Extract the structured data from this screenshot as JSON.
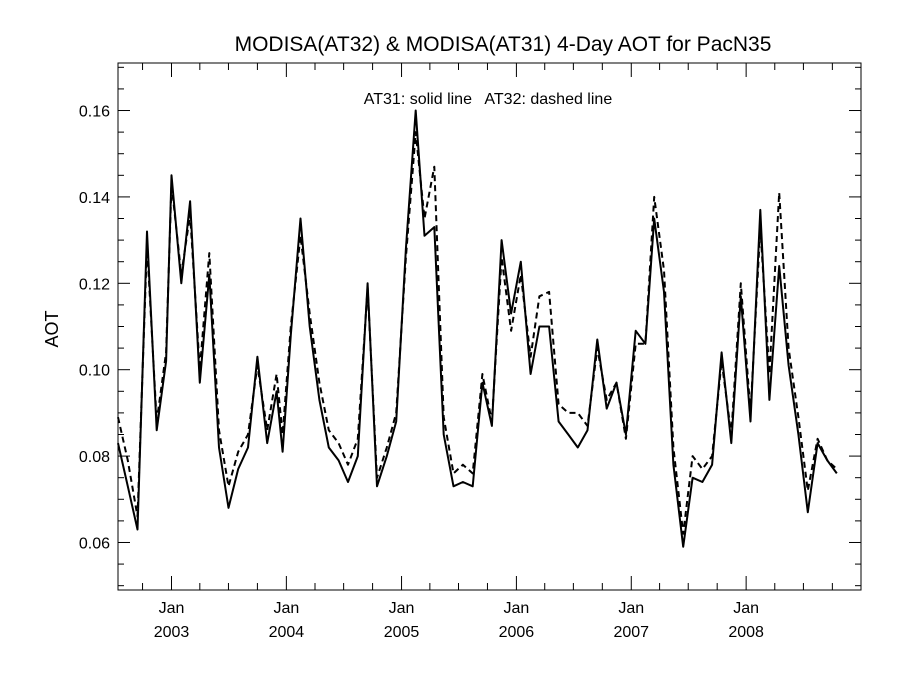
{
  "chart_data": {
    "type": "line",
    "title": "MODISA(AT32) & MODISA(AT31) 4-Day AOT for PacN35",
    "annotation": "AT31: solid line   AT32: dashed line",
    "xlabel": "",
    "ylabel": "AOT",
    "ylim": [
      0.049,
      0.171
    ],
    "xlim": [
      "2002-07-15",
      "2008-12-31"
    ],
    "yticks": [
      "0.06",
      "0.08",
      "0.10",
      "0.12",
      "0.14",
      "0.16"
    ],
    "yticks_values": [
      0.06,
      0.08,
      0.1,
      0.12,
      0.14,
      0.16
    ],
    "xticks": [
      {
        "month": "Jan",
        "year": "2003",
        "date": "2003-01-01"
      },
      {
        "month": "Jan",
        "year": "2004",
        "date": "2004-01-01"
      },
      {
        "month": "Jan",
        "year": "2005",
        "date": "2005-01-01"
      },
      {
        "month": "Jan",
        "year": "2006",
        "date": "2006-01-01"
      },
      {
        "month": "Jan",
        "year": "2007",
        "date": "2007-01-01"
      },
      {
        "month": "Jan",
        "year": "2008",
        "date": "2008-01-01"
      }
    ],
    "grid": false,
    "series": [
      {
        "name": "AT31",
        "style": "solid",
        "color": "#000000",
        "points": [
          [
            "2002-07-15",
            0.083
          ],
          [
            "2002-08-15",
            0.073
          ],
          [
            "2002-09-15",
            0.063
          ],
          [
            "2002-10-15",
            0.132
          ],
          [
            "2002-11-15",
            0.086
          ],
          [
            "2002-12-15",
            0.102
          ],
          [
            "2003-01-01",
            0.145
          ],
          [
            "2003-02-01",
            0.12
          ],
          [
            "2003-03-01",
            0.139
          ],
          [
            "2003-04-01",
            0.097
          ],
          [
            "2003-05-01",
            0.122
          ],
          [
            "2003-06-01",
            0.082
          ],
          [
            "2003-07-01",
            0.068
          ],
          [
            "2003-08-01",
            0.077
          ],
          [
            "2003-09-01",
            0.082
          ],
          [
            "2003-10-01",
            0.103
          ],
          [
            "2003-11-01",
            0.083
          ],
          [
            "2003-12-01",
            0.095
          ],
          [
            "2003-12-20",
            0.081
          ],
          [
            "2004-01-15",
            0.108
          ],
          [
            "2004-02-15",
            0.135
          ],
          [
            "2004-03-15",
            0.11
          ],
          [
            "2004-04-15",
            0.093
          ],
          [
            "2004-05-15",
            0.082
          ],
          [
            "2004-06-15",
            0.079
          ],
          [
            "2004-07-15",
            0.074
          ],
          [
            "2004-08-15",
            0.08
          ],
          [
            "2004-09-15",
            0.12
          ],
          [
            "2004-10-15",
            0.073
          ],
          [
            "2004-11-15",
            0.08
          ],
          [
            "2004-12-15",
            0.088
          ],
          [
            "2005-01-15",
            0.128
          ],
          [
            "2005-02-15",
            0.16
          ],
          [
            "2005-03-15",
            0.131
          ],
          [
            "2005-04-15",
            0.133
          ],
          [
            "2005-05-15",
            0.085
          ],
          [
            "2005-06-15",
            0.073
          ],
          [
            "2005-07-15",
            0.074
          ],
          [
            "2005-08-15",
            0.073
          ],
          [
            "2005-09-15",
            0.097
          ],
          [
            "2005-10-15",
            0.087
          ],
          [
            "2005-11-15",
            0.13
          ],
          [
            "2005-12-15",
            0.113
          ],
          [
            "2006-01-15",
            0.125
          ],
          [
            "2006-02-15",
            0.099
          ],
          [
            "2006-03-15",
            0.11
          ],
          [
            "2006-04-15",
            0.11
          ],
          [
            "2006-05-15",
            0.088
          ],
          [
            "2006-06-15",
            0.085
          ],
          [
            "2006-07-15",
            0.082
          ],
          [
            "2006-08-15",
            0.086
          ],
          [
            "2006-09-15",
            0.107
          ],
          [
            "2006-10-15",
            0.091
          ],
          [
            "2006-11-15",
            0.097
          ],
          [
            "2006-12-15",
            0.085
          ],
          [
            "2007-01-15",
            0.109
          ],
          [
            "2007-02-15",
            0.106
          ],
          [
            "2007-03-15",
            0.135
          ],
          [
            "2007-04-15",
            0.118
          ],
          [
            "2007-05-15",
            0.078
          ],
          [
            "2007-06-15",
            0.059
          ],
          [
            "2007-07-15",
            0.075
          ],
          [
            "2007-08-15",
            0.074
          ],
          [
            "2007-09-15",
            0.078
          ],
          [
            "2007-10-15",
            0.104
          ],
          [
            "2007-11-15",
            0.083
          ],
          [
            "2007-12-15",
            0.117
          ],
          [
            "2008-01-15",
            0.088
          ],
          [
            "2008-02-15",
            0.137
          ],
          [
            "2008-03-15",
            0.093
          ],
          [
            "2008-04-15",
            0.124
          ],
          [
            "2008-05-15",
            0.101
          ],
          [
            "2008-06-15",
            0.085
          ],
          [
            "2008-07-15",
            0.067
          ],
          [
            "2008-08-15",
            0.083
          ],
          [
            "2008-09-15",
            0.079
          ],
          [
            "2008-10-15",
            0.076
          ]
        ]
      },
      {
        "name": "AT32",
        "style": "dashed",
        "color": "#000000",
        "points": [
          [
            "2002-07-15",
            0.089
          ],
          [
            "2002-08-15",
            0.079
          ],
          [
            "2002-09-15",
            0.066
          ],
          [
            "2002-10-15",
            0.129
          ],
          [
            "2002-11-15",
            0.088
          ],
          [
            "2002-12-15",
            0.104
          ],
          [
            "2003-01-01",
            0.143
          ],
          [
            "2003-02-01",
            0.122
          ],
          [
            "2003-03-01",
            0.136
          ],
          [
            "2003-04-01",
            0.1
          ],
          [
            "2003-05-01",
            0.127
          ],
          [
            "2003-06-01",
            0.086
          ],
          [
            "2003-07-01",
            0.073
          ],
          [
            "2003-08-01",
            0.081
          ],
          [
            "2003-09-01",
            0.085
          ],
          [
            "2003-10-01",
            0.101
          ],
          [
            "2003-11-01",
            0.086
          ],
          [
            "2003-12-01",
            0.099
          ],
          [
            "2003-12-20",
            0.085
          ],
          [
            "2004-01-15",
            0.11
          ],
          [
            "2004-02-15",
            0.131
          ],
          [
            "2004-03-15",
            0.113
          ],
          [
            "2004-04-15",
            0.097
          ],
          [
            "2004-05-15",
            0.086
          ],
          [
            "2004-06-15",
            0.083
          ],
          [
            "2004-07-15",
            0.078
          ],
          [
            "2004-08-15",
            0.084
          ],
          [
            "2004-09-15",
            0.119
          ],
          [
            "2004-10-15",
            0.075
          ],
          [
            "2004-11-15",
            0.082
          ],
          [
            "2004-12-15",
            0.09
          ],
          [
            "2005-01-15",
            0.126
          ],
          [
            "2005-02-15",
            0.155
          ],
          [
            "2005-03-15",
            0.135
          ],
          [
            "2005-04-15",
            0.147
          ],
          [
            "2005-05-15",
            0.089
          ],
          [
            "2005-06-15",
            0.076
          ],
          [
            "2005-07-15",
            0.078
          ],
          [
            "2005-08-15",
            0.076
          ],
          [
            "2005-09-15",
            0.099
          ],
          [
            "2005-10-15",
            0.088
          ],
          [
            "2005-11-15",
            0.126
          ],
          [
            "2005-12-15",
            0.109
          ],
          [
            "2006-01-15",
            0.122
          ],
          [
            "2006-02-15",
            0.103
          ],
          [
            "2006-03-15",
            0.117
          ],
          [
            "2006-04-15",
            0.118
          ],
          [
            "2006-05-15",
            0.092
          ],
          [
            "2006-06-15",
            0.09
          ],
          [
            "2006-07-15",
            0.09
          ],
          [
            "2006-08-15",
            0.087
          ],
          [
            "2006-09-15",
            0.105
          ],
          [
            "2006-10-15",
            0.093
          ],
          [
            "2006-11-15",
            0.097
          ],
          [
            "2006-12-15",
            0.084
          ],
          [
            "2007-01-15",
            0.106
          ],
          [
            "2007-02-15",
            0.106
          ],
          [
            "2007-03-15",
            0.14
          ],
          [
            "2007-04-15",
            0.123
          ],
          [
            "2007-05-15",
            0.082
          ],
          [
            "2007-06-15",
            0.062
          ],
          [
            "2007-07-15",
            0.08
          ],
          [
            "2007-08-15",
            0.077
          ],
          [
            "2007-09-15",
            0.08
          ],
          [
            "2007-10-15",
            0.102
          ],
          [
            "2007-11-15",
            0.085
          ],
          [
            "2007-12-15",
            0.12
          ],
          [
            "2008-01-15",
            0.09
          ],
          [
            "2008-02-15",
            0.133
          ],
          [
            "2008-03-15",
            0.099
          ],
          [
            "2008-04-15",
            0.141
          ],
          [
            "2008-05-15",
            0.105
          ],
          [
            "2008-06-15",
            0.089
          ],
          [
            "2008-07-15",
            0.072
          ],
          [
            "2008-08-15",
            0.084
          ],
          [
            "2008-09-15",
            0.079
          ],
          [
            "2008-10-15",
            0.077
          ]
        ]
      }
    ]
  }
}
